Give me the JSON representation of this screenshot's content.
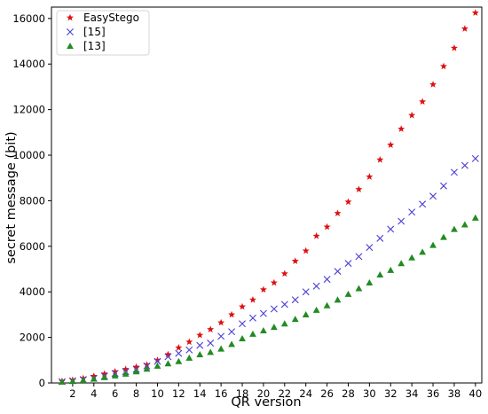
{
  "chart_data": {
    "type": "scatter",
    "title": "",
    "xlabel": "QR version",
    "ylabel": "secret message (bit)",
    "xlim": [
      0,
      40.6
    ],
    "ylim": [
      0,
      16500
    ],
    "xticks": [
      2,
      4,
      6,
      8,
      10,
      12,
      14,
      16,
      18,
      20,
      22,
      24,
      26,
      28,
      30,
      32,
      34,
      36,
      38,
      40
    ],
    "yticks": [
      0,
      2000,
      4000,
      6000,
      8000,
      10000,
      12000,
      14000,
      16000
    ],
    "grid": false,
    "legend_position": "top-left",
    "x": [
      1,
      2,
      3,
      4,
      5,
      6,
      7,
      8,
      9,
      10,
      11,
      12,
      13,
      14,
      15,
      16,
      17,
      18,
      19,
      20,
      21,
      22,
      23,
      24,
      25,
      26,
      27,
      28,
      29,
      30,
      31,
      32,
      33,
      34,
      35,
      36,
      37,
      38,
      39,
      40
    ],
    "series": [
      {
        "name": "EasyStego",
        "marker": "star",
        "color": "#dd1111",
        "values": [
          80,
          130,
          200,
          300,
          400,
          500,
          600,
          700,
          800,
          1000,
          1250,
          1550,
          1800,
          2100,
          2350,
          2650,
          3000,
          3350,
          3650,
          4100,
          4400,
          4800,
          5350,
          5800,
          6450,
          6850,
          7450,
          7950,
          8500,
          9050,
          9800,
          10450,
          11150,
          11750,
          12350,
          13100,
          13900,
          14700,
          15550,
          16250
        ]
      },
      {
        "name": "[15]",
        "marker": "x",
        "color": "#4b3fd6",
        "values": [
          60,
          100,
          150,
          200,
          300,
          420,
          500,
          600,
          750,
          950,
          1150,
          1300,
          1450,
          1650,
          1750,
          2050,
          2250,
          2600,
          2850,
          3050,
          3250,
          3450,
          3650,
          4000,
          4250,
          4550,
          4900,
          5250,
          5550,
          5950,
          6350,
          6750,
          7100,
          7500,
          7850,
          8200,
          8650,
          9250,
          9550,
          9850
        ]
      },
      {
        "name": "[13]",
        "marker": "triangle",
        "color": "#228b22",
        "values": [
          50,
          80,
          120,
          180,
          250,
          320,
          400,
          500,
          620,
          750,
          850,
          950,
          1100,
          1250,
          1350,
          1500,
          1700,
          1950,
          2150,
          2300,
          2450,
          2600,
          2800,
          3000,
          3200,
          3400,
          3650,
          3900,
          4150,
          4400,
          4750,
          4950,
          5250,
          5500,
          5750,
          6050,
          6400,
          6750,
          6950,
          7250
        ]
      }
    ]
  }
}
